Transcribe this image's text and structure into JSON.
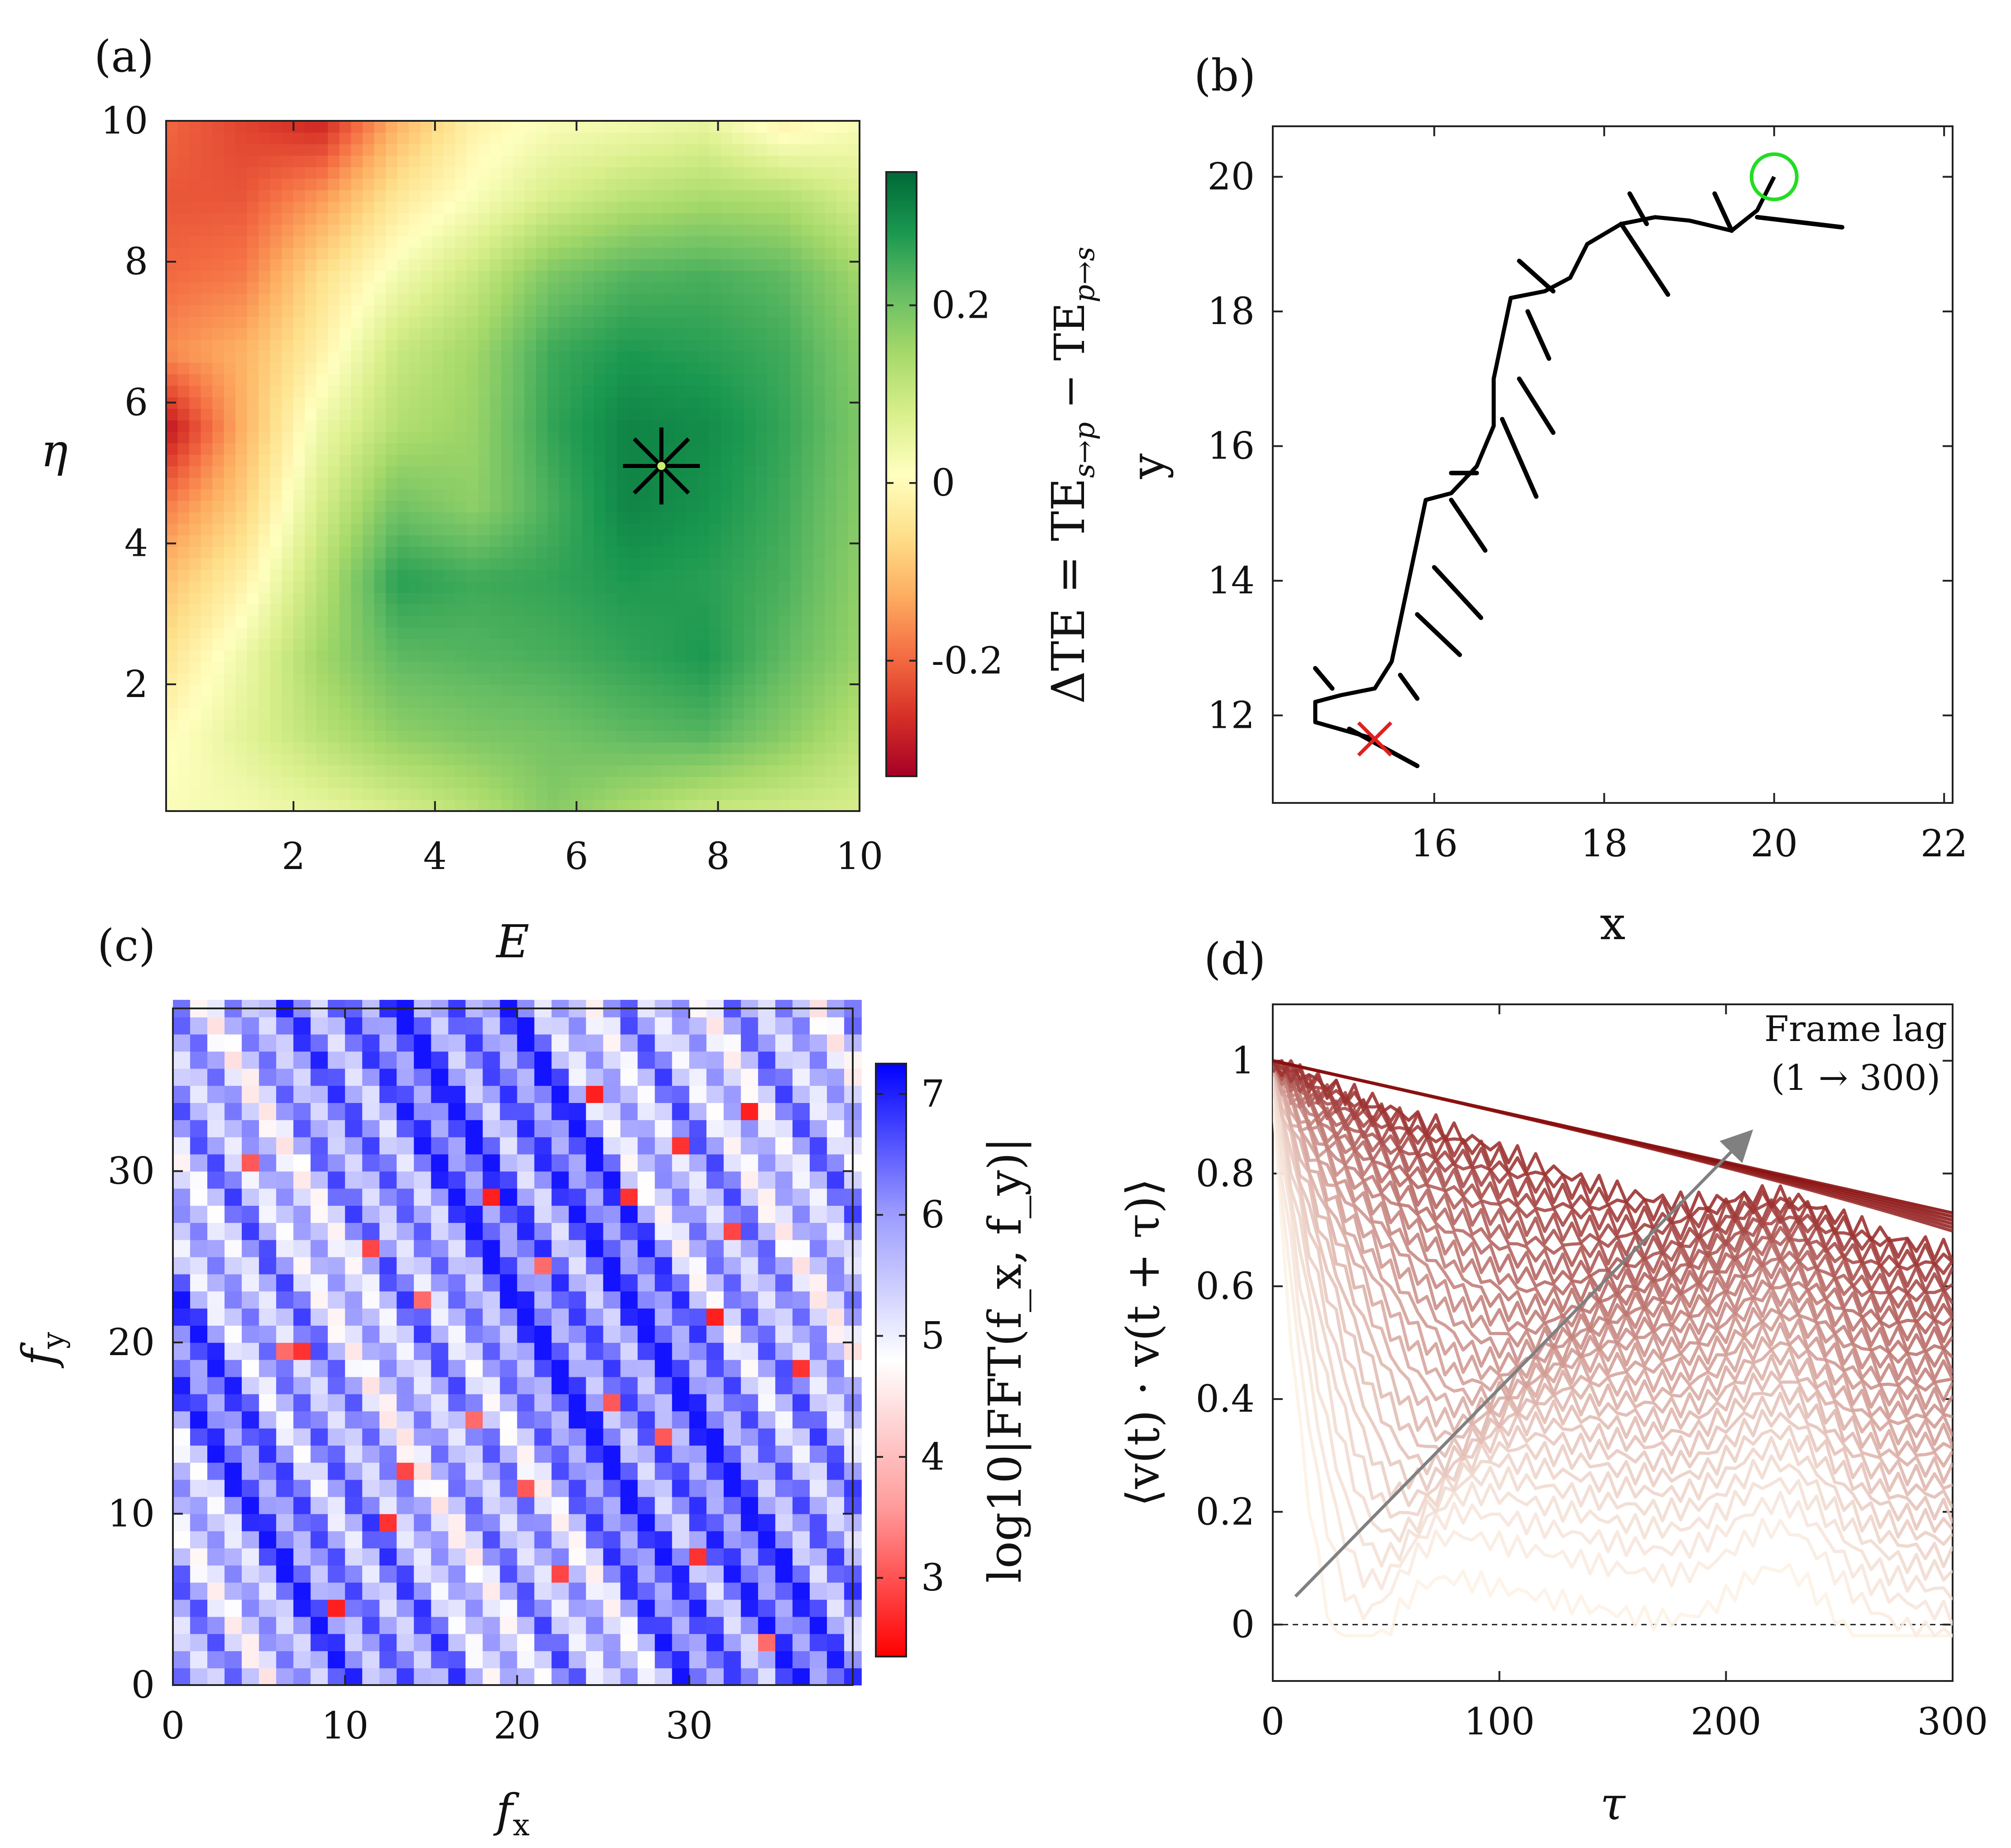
{
  "chart_data": [
    {
      "panel": "(a)",
      "type": "heatmap",
      "xlabel": "E",
      "ylabel": "η",
      "xlim": [
        0.2,
        10
      ],
      "ylim": [
        0.2,
        10
      ],
      "xticks": [
        2,
        4,
        6,
        8,
        10
      ],
      "yticks": [
        2,
        4,
        6,
        8,
        10
      ],
      "colorbar": {
        "label": "ΔTE = TE_{s→p} − TE_{p→s}",
        "label_parts": [
          "ΔTE = TE",
          "s→p",
          " − TE",
          "p→s"
        ],
        "range": [
          -0.33,
          0.35
        ],
        "ticks": [
          -0.2,
          0,
          0.2
        ],
        "tick_labels": [
          "-0.2",
          "0",
          "0.2"
        ],
        "colormap": [
          "#a50026",
          "#d73027",
          "#f46d43",
          "#fdae61",
          "#fee08b",
          "#ffffbf",
          "#d9ef8b",
          "#a6d96a",
          "#66bd63",
          "#1a9850",
          "#006837"
        ]
      },
      "marker": {
        "x": 7.2,
        "y": 5.1,
        "symbol": "asterisk"
      },
      "grid_e": [
        0.2,
        1.29,
        2.38,
        3.47,
        4.56,
        5.64,
        6.73,
        7.82,
        8.91,
        10.0
      ],
      "grid_eta": [
        0.2,
        1.29,
        2.38,
        3.47,
        4.56,
        5.64,
        6.73,
        7.82,
        8.91,
        10.0
      ],
      "values": [
        [
          0.02,
          0.03,
          0.05,
          0.08,
          0.12,
          0.18,
          0.14,
          0.1,
          0.09,
          0.08
        ],
        [
          0.0,
          0.06,
          0.12,
          0.17,
          0.19,
          0.2,
          0.22,
          0.23,
          0.18,
          0.12
        ],
        [
          -0.05,
          0.04,
          0.15,
          0.22,
          0.23,
          0.24,
          0.26,
          0.28,
          0.22,
          0.16
        ],
        [
          -0.1,
          -0.02,
          0.12,
          0.27,
          0.25,
          0.26,
          0.28,
          0.27,
          0.24,
          0.17
        ],
        [
          -0.18,
          -0.08,
          0.08,
          0.2,
          0.17,
          0.24,
          0.31,
          0.29,
          0.25,
          0.18
        ],
        [
          -0.3,
          -0.12,
          0.04,
          0.13,
          0.16,
          0.26,
          0.31,
          0.3,
          0.26,
          0.19
        ],
        [
          -0.16,
          -0.12,
          -0.02,
          0.1,
          0.15,
          0.25,
          0.28,
          0.27,
          0.25,
          0.18
        ],
        [
          -0.2,
          -0.18,
          -0.06,
          0.03,
          0.1,
          0.19,
          0.23,
          0.24,
          0.22,
          0.15
        ],
        [
          -0.22,
          -0.22,
          -0.15,
          -0.04,
          0.02,
          0.08,
          0.12,
          0.14,
          0.13,
          0.08
        ],
        [
          -0.2,
          -0.24,
          -0.28,
          -0.12,
          -0.02,
          0.02,
          0.03,
          0.05,
          -0.02,
          0.02
        ]
      ]
    },
    {
      "panel": "(b)",
      "type": "line",
      "xlabel": "x",
      "ylabel": "y",
      "xlim": [
        14.1,
        22.1
      ],
      "ylim": [
        10.7,
        20.75
      ],
      "xticks": [
        16,
        18,
        20,
        22
      ],
      "yticks": [
        12,
        14,
        16,
        18,
        20
      ],
      "start_marker": {
        "x": 20.0,
        "y": 20.0,
        "symbol": "circle",
        "color": "#22dd22"
      },
      "end_marker": {
        "x": 15.3,
        "y": 11.65,
        "symbol": "x",
        "color": "#e02020"
      },
      "path": [
        [
          20.0,
          20.0
        ],
        [
          19.8,
          19.5
        ],
        [
          19.5,
          19.2
        ],
        [
          19.0,
          19.35
        ],
        [
          18.6,
          19.4
        ],
        [
          18.2,
          19.3
        ],
        [
          17.8,
          19.0
        ],
        [
          17.6,
          18.5
        ],
        [
          17.3,
          18.3
        ],
        [
          16.9,
          18.2
        ],
        [
          16.8,
          17.6
        ],
        [
          16.7,
          17.0
        ],
        [
          16.7,
          16.3
        ],
        [
          16.5,
          15.7
        ],
        [
          16.2,
          15.3
        ],
        [
          15.9,
          15.2
        ],
        [
          15.8,
          14.6
        ],
        [
          15.7,
          14.0
        ],
        [
          15.6,
          13.4
        ],
        [
          15.5,
          12.8
        ],
        [
          15.3,
          12.4
        ],
        [
          14.9,
          12.3
        ],
        [
          14.6,
          12.2
        ],
        [
          14.6,
          11.9
        ],
        [
          15.3,
          11.65
        ]
      ],
      "spikes": [
        [
          19.8,
          19.4,
          20.8,
          19.25
        ],
        [
          19.5,
          19.2,
          19.3,
          19.75
        ],
        [
          18.5,
          19.3,
          18.3,
          19.75
        ],
        [
          18.2,
          19.3,
          18.75,
          18.25
        ],
        [
          17.4,
          18.3,
          17.0,
          18.75
        ],
        [
          17.1,
          18.0,
          17.35,
          17.3
        ],
        [
          17.0,
          17.0,
          17.4,
          16.2
        ],
        [
          16.8,
          16.4,
          17.2,
          15.25
        ],
        [
          16.5,
          15.6,
          16.2,
          15.6
        ],
        [
          16.2,
          15.2,
          16.6,
          14.45
        ],
        [
          16.0,
          14.2,
          16.55,
          13.45
        ],
        [
          15.8,
          13.5,
          16.3,
          12.9
        ],
        [
          15.6,
          12.6,
          15.8,
          12.25
        ],
        [
          14.8,
          12.4,
          14.6,
          12.7
        ],
        [
          15.0,
          11.8,
          15.8,
          11.25
        ]
      ]
    },
    {
      "panel": "(c)",
      "type": "heatmap",
      "xlabel": "f_x",
      "ylabel": "f_y",
      "xlim": [
        0,
        39.5
      ],
      "ylim": [
        0,
        39.5
      ],
      "xticks": [
        0,
        10,
        20,
        30
      ],
      "yticks": [
        0,
        10,
        20,
        30
      ],
      "colorbar": {
        "label": "log10|FFT(f_x, f_y)|",
        "range": [
          2.35,
          7.25
        ],
        "ticks": [
          3,
          4,
          5,
          6,
          7
        ],
        "tick_labels": [
          "3",
          "4",
          "5",
          "6",
          "7"
        ],
        "colormap": [
          "#ff0000",
          "#ff9a9a",
          "#ffffff",
          "#9a9aff",
          "#0000ff"
        ]
      },
      "grid_size": 40,
      "stripe_slope": -1.7,
      "stripe_period": 5.5,
      "dark_bands": [
        [
          20,
          20
        ],
        [
          0,
          20
        ],
        [
          38,
          2
        ],
        [
          16,
          38
        ]
      ],
      "red_points": [
        [
          6,
          19
        ],
        [
          7,
          19
        ],
        [
          12,
          9
        ],
        [
          13,
          12
        ],
        [
          14,
          22
        ],
        [
          18,
          28
        ],
        [
          20,
          11
        ],
        [
          21,
          24
        ],
        [
          22,
          6
        ],
        [
          24,
          34
        ],
        [
          25,
          16
        ],
        [
          28,
          14
        ],
        [
          30,
          7
        ],
        [
          31,
          21
        ],
        [
          32,
          26
        ],
        [
          33,
          33
        ],
        [
          34,
          2
        ],
        [
          36,
          18
        ],
        [
          11,
          25
        ],
        [
          9,
          4
        ],
        [
          4,
          30
        ],
        [
          26,
          28
        ],
        [
          29,
          31
        ],
        [
          17,
          15
        ]
      ]
    },
    {
      "panel": "(d)",
      "type": "line",
      "xlabel": "τ",
      "ylabel": "⟨v(t) · v(t + τ)⟩",
      "xlim": [
        0,
        300
      ],
      "ylim": [
        -0.1,
        1.1
      ],
      "xticks": [
        0,
        100,
        200,
        300
      ],
      "yticks": [
        0,
        0.2,
        0.4,
        0.6,
        0.8,
        1
      ],
      "ytick_labels": [
        "0",
        "0.2",
        "0.4",
        "0.6",
        "0.8",
        "1"
      ],
      "zero_line": true,
      "annotation": {
        "text_line1": "Frame lag",
        "text_line2": "(1 → 300)",
        "arrow_from": [
          10,
          0.05
        ],
        "arrow_to": [
          210,
          0.87
        ]
      },
      "series_count": 40,
      "lag_min": 1,
      "lag_max": 300,
      "color_from": "#fdf2e6",
      "color_to": "#8a0f10"
    }
  ]
}
